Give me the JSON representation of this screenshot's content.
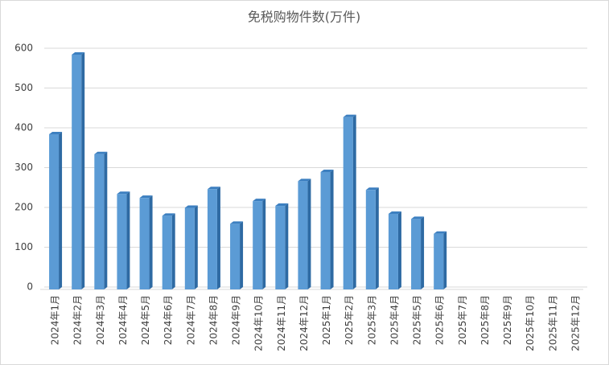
{
  "chart_data": {
    "type": "bar",
    "title": "免税购物件数(万件)",
    "categories": [
      "2024年1月",
      "2024年2月",
      "2024年3月",
      "2024年4月",
      "2024年5月",
      "2024年6月",
      "2024年7月",
      "2024年8月",
      "2024年9月",
      "2024年10月",
      "2024年11月",
      "2024年12月",
      "2025年1月",
      "2025年2月",
      "2025年3月",
      "2025年4月",
      "2025年5月",
      "2025年6月",
      "2025年7月",
      "2025年8月",
      "2025年9月",
      "2025年10月",
      "2025年11月",
      "2025年12月"
    ],
    "values": [
      390,
      590,
      340,
      240,
      230,
      185,
      205,
      252,
      165,
      222,
      210,
      272,
      295,
      433,
      250,
      190,
      177,
      140,
      null,
      null,
      null,
      null,
      null,
      null
    ],
    "color": "#5b9bd5",
    "ylim": [
      0,
      600
    ],
    "yticks": [
      0,
      100,
      200,
      300,
      400,
      500,
      600
    ],
    "grid": true
  }
}
